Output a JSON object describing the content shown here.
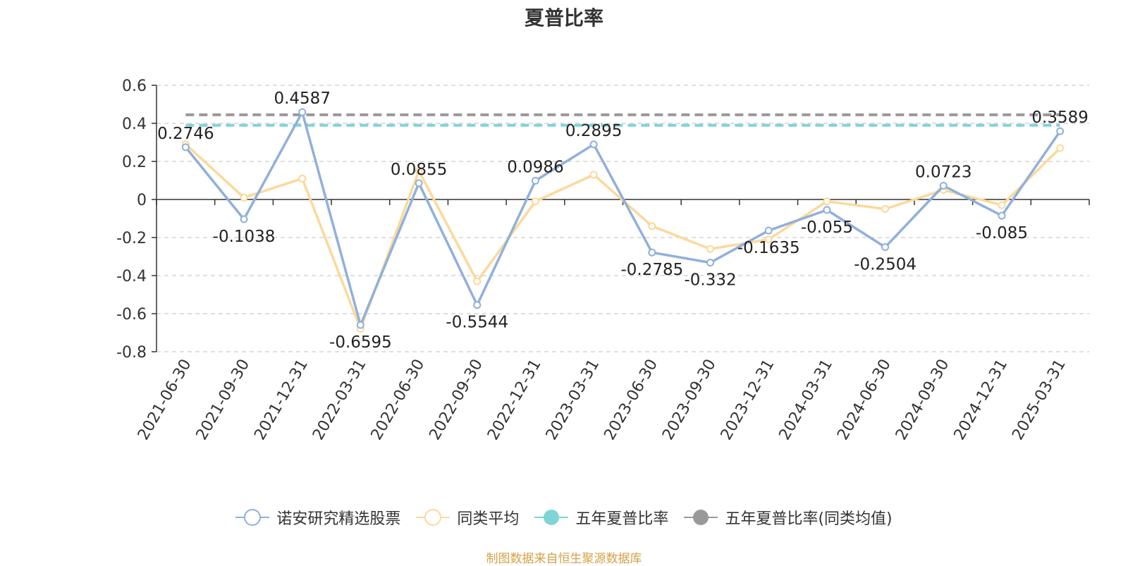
{
  "chart_data": {
    "type": "line",
    "title": "夏普比率",
    "categories": [
      "2021-06-30",
      "2021-09-30",
      "2021-12-31",
      "2022-03-31",
      "2022-06-30",
      "2022-09-30",
      "2022-12-31",
      "2023-03-31",
      "2023-06-30",
      "2023-09-30",
      "2023-12-31",
      "2024-03-31",
      "2024-06-30",
      "2024-09-30",
      "2024-12-31",
      "2025-03-31"
    ],
    "ylim": [
      -0.8,
      0.6
    ],
    "yticks": [
      -0.8,
      -0.6,
      -0.4,
      -0.2,
      0,
      0.2,
      0.4,
      0.6
    ],
    "ytick_labels": [
      "-0.8",
      "-0.6",
      "-0.4",
      "-0.2",
      "0",
      "0.2",
      "0.4",
      "0.6"
    ],
    "grid": true,
    "legend_position": "bottom",
    "series": [
      {
        "name": "诺安研究精选股票",
        "color": "#8fb0dc",
        "values": [
          0.2746,
          -0.1038,
          0.4587,
          -0.6595,
          0.0855,
          -0.5544,
          0.0986,
          0.2895,
          -0.2785,
          -0.332,
          -0.1635,
          -0.055,
          -0.2504,
          0.0723,
          -0.085,
          0.3589
        ],
        "labels": [
          "0.2746",
          "-0.1038",
          "0.4587",
          "-0.6595",
          "0.0855",
          "-0.5544",
          "0.0986",
          "0.2895",
          "-0.2785",
          "-0.332",
          "-0.1635",
          "-0.055",
          "-0.2504",
          "0.0723",
          "-0.085",
          "0.3589"
        ]
      },
      {
        "name": "同类平均",
        "color": "#fbd99a",
        "values": [
          0.29,
          0.01,
          0.11,
          -0.68,
          0.15,
          -0.43,
          -0.01,
          0.13,
          -0.14,
          -0.26,
          -0.21,
          -0.01,
          -0.05,
          0.05,
          -0.03,
          0.27
        ]
      },
      {
        "name": "五年夏普比率",
        "color": "#7fd4d6",
        "style": "dashed",
        "constant": 0.39
      },
      {
        "name": "五年夏普比率(同类均值)",
        "color": "#999999",
        "style": "dashed",
        "constant": 0.445
      }
    ]
  },
  "source_note": {
    "text": "制图数据来自恒生聚源数据库",
    "color": "#d4a246"
  }
}
